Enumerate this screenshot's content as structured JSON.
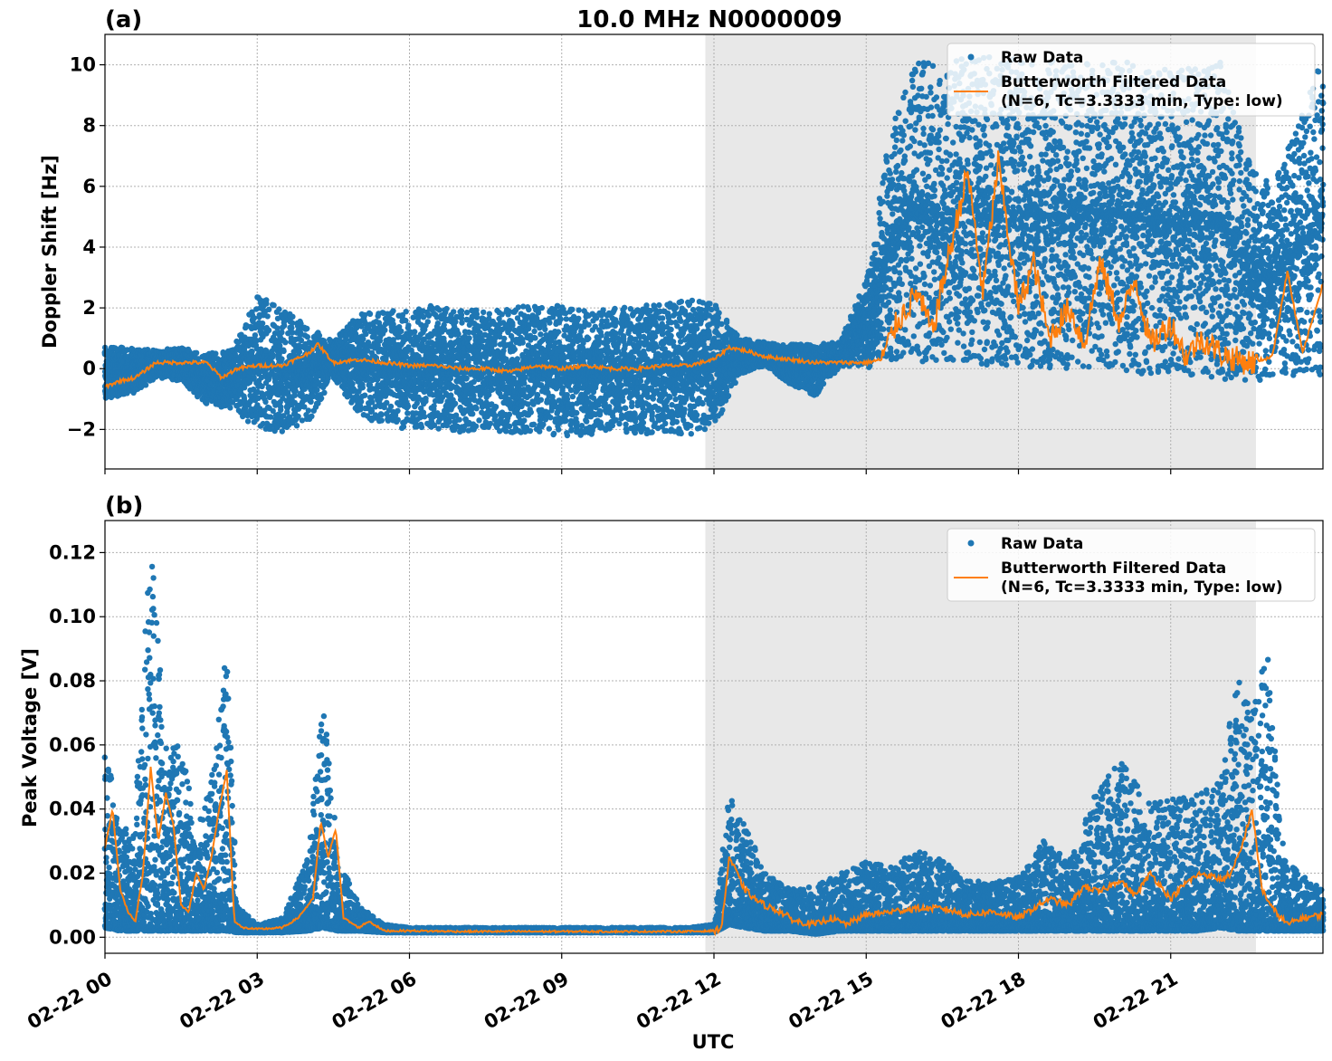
{
  "figure": {
    "title": "10.0 MHz N0000009",
    "xlabel": "UTC"
  },
  "colors": {
    "raw": "#1f77b4",
    "filtered": "#ff7f0e",
    "shade": "#e8e8e8",
    "grid": "#b0b0b0"
  },
  "chart_data": [
    {
      "type": "scatter",
      "panel_label": "(a)",
      "ylabel": "Doppler Shift [Hz]",
      "xlim": [
        0,
        24
      ],
      "ylim": [
        -3.3,
        11.0
      ],
      "yticks": [
        -2,
        0,
        2,
        4,
        6,
        8,
        10
      ],
      "ytick_labels": [
        "−2",
        "0",
        "2",
        "4",
        "6",
        "8",
        "10"
      ],
      "xticks": [
        0,
        3,
        6,
        9,
        12,
        15,
        18,
        21
      ],
      "grid": true,
      "legend_position": "top-right",
      "shaded_interval_hours": [
        11.83,
        22.68
      ],
      "legend": [
        "Raw Data",
        "Butterworth Filtered Data",
        "(N=6, Tc=3.3333 min, Type: low)"
      ],
      "series": [
        {
          "name": "Raw Data",
          "style": "points",
          "x": [
            0,
            0.5,
            1,
            1.5,
            2,
            2.5,
            3,
            3.5,
            4,
            4.5,
            5,
            5.5,
            6,
            6.5,
            7,
            7.5,
            8,
            8.5,
            9,
            9.5,
            10,
            10.5,
            11,
            11.5,
            12,
            12.5,
            13,
            13.5,
            14,
            14.5,
            15,
            15.5,
            16,
            16.5,
            17,
            17.5,
            18,
            18.5,
            19,
            19.5,
            20,
            20.5,
            21,
            21.5,
            22,
            22.5,
            23,
            23.5,
            24
          ],
          "y_low": [
            -1,
            -0.9,
            -0.3,
            -0.4,
            -1.2,
            -1.3,
            -2.0,
            -2.1,
            -1.8,
            -0.3,
            -1.5,
            -1.9,
            -2.0,
            -2.0,
            -2.1,
            -2.0,
            -2.1,
            -2.1,
            -2.2,
            -2.2,
            -2.1,
            -2.2,
            -2.1,
            -2.2,
            -2.0,
            -0.2,
            0.1,
            -0.5,
            -0.9,
            0.1,
            0.0,
            0.3,
            0.2,
            0.2,
            0.2,
            0.1,
            0.1,
            0.0,
            -0.1,
            -0.1,
            -0.1,
            -0.2,
            -0.2,
            -0.3,
            -0.4,
            -0.5,
            -0.3,
            -0.2,
            -0.2
          ],
          "y_high": [
            0.7,
            0.7,
            0.6,
            0.7,
            0.5,
            0.6,
            2.4,
            2.0,
            1.4,
            0.9,
            1.8,
            1.9,
            1.9,
            2.1,
            2.0,
            1.9,
            2.0,
            2.1,
            2.1,
            1.9,
            2.0,
            2.1,
            2.1,
            2.3,
            2.2,
            1.0,
            0.9,
            0.8,
            0.8,
            0.9,
            3.0,
            8.0,
            10.3,
            9.9,
            10.3,
            10.3,
            10.2,
            10.1,
            10.2,
            10.0,
            10.2,
            10.0,
            9.8,
            9.9,
            10.1,
            7.0,
            6.0,
            8.0,
            10.3
          ]
        },
        {
          "name": "Butterworth Filtered Data",
          "style": "line",
          "x": [
            0,
            0.3,
            0.6,
            1,
            1.5,
            2,
            2.3,
            2.6,
            3,
            3.5,
            4,
            4.2,
            4.5,
            5,
            5.5,
            6,
            6.5,
            7,
            7.5,
            8,
            8.5,
            9,
            9.5,
            10,
            10.5,
            11,
            11.5,
            12,
            12.3,
            12.6,
            13,
            13.5,
            14,
            14.5,
            15,
            15.3,
            15.6,
            16,
            16.3,
            16.6,
            17,
            17.3,
            17.6,
            18,
            18.3,
            18.6,
            19,
            19.3,
            19.6,
            20,
            20.3,
            20.6,
            21,
            21.3,
            21.6,
            22,
            22.3,
            22.6,
            23,
            23.3,
            23.6,
            24
          ],
          "y": [
            -0.6,
            -0.4,
            -0.3,
            0.2,
            0.2,
            0.2,
            -0.3,
            0.0,
            0.1,
            0.1,
            0.5,
            0.8,
            0.2,
            0.3,
            0.2,
            0.1,
            0.1,
            0.0,
            0.0,
            -0.1,
            0.1,
            0.0,
            0.1,
            0.0,
            0.0,
            0.1,
            0.1,
            0.3,
            0.7,
            0.6,
            0.4,
            0.3,
            0.2,
            0.2,
            0.2,
            0.3,
            1.5,
            2.5,
            1.2,
            3.5,
            6.5,
            2.5,
            6.8,
            2.0,
            3.5,
            1.0,
            2.0,
            0.8,
            3.5,
            1.5,
            3.0,
            0.8,
            1.5,
            0.4,
            1.0,
            0.5,
            0.3,
            0.2,
            0.4,
            3.2,
            0.5,
            2.8
          ]
        }
      ]
    },
    {
      "type": "scatter",
      "panel_label": "(b)",
      "ylabel": "Peak Voltage [V]",
      "xlim": [
        0,
        24
      ],
      "ylim": [
        -0.005,
        0.13
      ],
      "yticks": [
        0.0,
        0.02,
        0.04,
        0.06,
        0.08,
        0.1,
        0.12
      ],
      "ytick_labels": [
        "0.00",
        "0.02",
        "0.04",
        "0.06",
        "0.08",
        "0.10",
        "0.12"
      ],
      "xticks": [
        0,
        3,
        6,
        9,
        12,
        15,
        18,
        21
      ],
      "xtick_labels": [
        "02-22 00",
        "02-22 03",
        "02-22 06",
        "02-22 09",
        "02-22 12",
        "02-22 15",
        "02-22 18",
        "02-22 21"
      ],
      "grid": true,
      "legend_position": "top-right",
      "shaded_interval_hours": [
        11.83,
        22.68
      ],
      "legend": [
        "Raw Data",
        "Butterworth Filtered Data",
        "(N=6, Tc=3.3333 min, Type: low)"
      ],
      "series": [
        {
          "name": "Raw Data",
          "style": "points",
          "x": [
            0,
            0.3,
            0.6,
            0.9,
            1.2,
            1.5,
            1.8,
            2.1,
            2.4,
            2.6,
            3,
            3.5,
            4,
            4.3,
            4.6,
            5,
            5.5,
            6,
            7,
            8,
            9,
            10,
            11,
            11.5,
            12,
            12.3,
            12.6,
            13,
            13.5,
            14,
            14.5,
            15,
            15.5,
            16,
            16.5,
            17,
            17.5,
            18,
            18.5,
            19,
            19.5,
            20,
            20.5,
            21,
            21.5,
            22,
            22.3,
            22.6,
            22.9,
            23.2,
            23.5,
            24
          ],
          "y_low": [
            0.003,
            0.002,
            0.002,
            0.002,
            0.002,
            0.002,
            0.002,
            0.002,
            0.002,
            0.0015,
            0.0015,
            0.0015,
            0.002,
            0.003,
            0.002,
            0.002,
            0.0015,
            0.0015,
            0.0015,
            0.0015,
            0.0015,
            0.0015,
            0.0015,
            0.0015,
            0.0015,
            0.004,
            0.003,
            0.002,
            0.002,
            0.001,
            0.002,
            0.002,
            0.002,
            0.002,
            0.002,
            0.002,
            0.002,
            0.002,
            0.002,
            0.002,
            0.002,
            0.002,
            0.002,
            0.002,
            0.002,
            0.003,
            0.002,
            0.002,
            0.002,
            0.002,
            0.002,
            0.002
          ],
          "y_high": [
            0.062,
            0.033,
            0.04,
            0.124,
            0.06,
            0.06,
            0.033,
            0.05,
            0.091,
            0.01,
            0.004,
            0.006,
            0.025,
            0.076,
            0.025,
            0.01,
            0.004,
            0.003,
            0.003,
            0.003,
            0.003,
            0.003,
            0.003,
            0.003,
            0.004,
            0.045,
            0.036,
            0.02,
            0.015,
            0.016,
            0.02,
            0.024,
            0.022,
            0.027,
            0.024,
            0.018,
            0.017,
            0.019,
            0.03,
            0.024,
            0.044,
            0.056,
            0.043,
            0.043,
            0.045,
            0.05,
            0.082,
            0.07,
            0.09,
            0.03,
            0.02,
            0.015
          ]
        },
        {
          "name": "Butterworth Filtered Data",
          "style": "line",
          "x": [
            0,
            0.15,
            0.3,
            0.45,
            0.6,
            0.75,
            0.9,
            1.05,
            1.2,
            1.35,
            1.5,
            1.65,
            1.8,
            1.95,
            2.1,
            2.25,
            2.4,
            2.55,
            2.7,
            3,
            3.5,
            3.8,
            4.1,
            4.25,
            4.4,
            4.55,
            4.7,
            5,
            5.2,
            5.5,
            6,
            7,
            8,
            9,
            10,
            11,
            11.5,
            12,
            12.15,
            12.3,
            12.45,
            12.6,
            12.8,
            13,
            13.3,
            13.6,
            14,
            14.3,
            14.6,
            15,
            15.5,
            16,
            16.5,
            17,
            17.5,
            18,
            18.3,
            18.6,
            19,
            19.3,
            19.6,
            20,
            20.3,
            20.6,
            21,
            21.3,
            21.6,
            22,
            22.2,
            22.4,
            22.6,
            22.8,
            23,
            23.3,
            23.6,
            24
          ],
          "y": [
            0.028,
            0.04,
            0.015,
            0.008,
            0.005,
            0.02,
            0.053,
            0.03,
            0.045,
            0.035,
            0.01,
            0.008,
            0.02,
            0.015,
            0.025,
            0.04,
            0.052,
            0.005,
            0.003,
            0.0025,
            0.003,
            0.006,
            0.012,
            0.036,
            0.025,
            0.034,
            0.006,
            0.003,
            0.005,
            0.002,
            0.002,
            0.0018,
            0.0018,
            0.0018,
            0.0018,
            0.0018,
            0.0018,
            0.002,
            0.003,
            0.025,
            0.02,
            0.015,
            0.012,
            0.01,
            0.008,
            0.005,
            0.004,
            0.006,
            0.004,
            0.007,
            0.008,
            0.009,
            0.009,
            0.007,
            0.008,
            0.006,
            0.009,
            0.012,
            0.01,
            0.016,
            0.014,
            0.018,
            0.013,
            0.02,
            0.012,
            0.017,
            0.02,
            0.018,
            0.02,
            0.028,
            0.04,
            0.015,
            0.009,
            0.004,
            0.006,
            0.007
          ]
        }
      ]
    }
  ]
}
